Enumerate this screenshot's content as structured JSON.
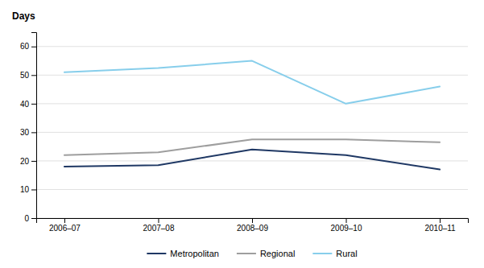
{
  "chart_data": {
    "type": "line",
    "ylabel": "Days",
    "categories": [
      "2006–07",
      "2007–08",
      "2008–09",
      "2009–10",
      "2010–11"
    ],
    "series": [
      {
        "name": "Metropolitan",
        "color": "#1F3864",
        "values": [
          18,
          18.5,
          24,
          22,
          17
        ]
      },
      {
        "name": "Regional",
        "color": "#9E9E9E",
        "values": [
          22,
          23,
          27.5,
          27.5,
          26.5
        ]
      },
      {
        "name": "Rural",
        "color": "#87CEEB",
        "values": [
          51,
          52.5,
          55,
          40,
          46
        ]
      }
    ],
    "ylim": [
      0,
      65
    ],
    "yticks": [
      0,
      10,
      20,
      30,
      40,
      50,
      60
    ],
    "grid": true,
    "legend": "bottom"
  }
}
